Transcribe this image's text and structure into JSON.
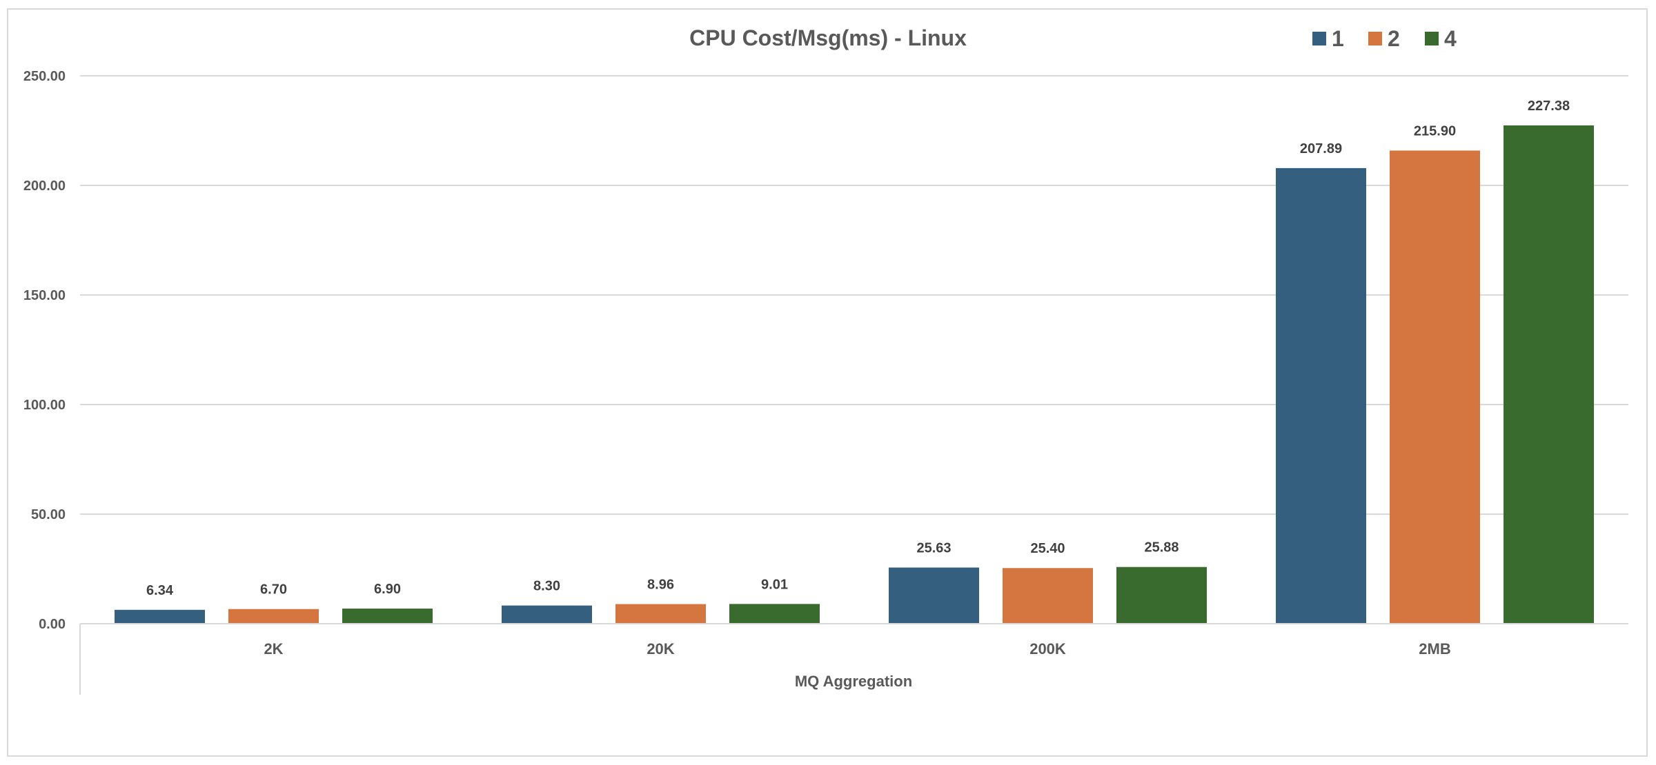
{
  "chart_data": {
    "type": "bar",
    "title": "CPU Cost/Msg(ms) - Linux",
    "xlabel": "MQ Aggregation",
    "ylabel": "",
    "categories": [
      "2K",
      "20K",
      "200K",
      "2MB"
    ],
    "ylim": [
      0,
      250
    ],
    "yticks": [
      "0.00",
      "50.00",
      "100.00",
      "150.00",
      "200.00",
      "250.00"
    ],
    "grid": true,
    "legend_position": "top-right",
    "series": [
      {
        "name": "1",
        "color": "#355f7f",
        "values": [
          6.34,
          8.3,
          25.63,
          207.89
        ],
        "labels": [
          "6.34",
          "8.30",
          "25.63",
          "207.89"
        ]
      },
      {
        "name": "2",
        "color": "#d57641",
        "values": [
          6.7,
          8.96,
          25.4,
          215.9
        ],
        "labels": [
          "6.70",
          "8.96",
          "25.40",
          "215.90"
        ]
      },
      {
        "name": "4",
        "color": "#3a6b2e",
        "values": [
          6.9,
          9.01,
          25.88,
          227.38
        ],
        "labels": [
          "6.90",
          "9.01",
          "25.88",
          "227.38"
        ]
      }
    ]
  }
}
